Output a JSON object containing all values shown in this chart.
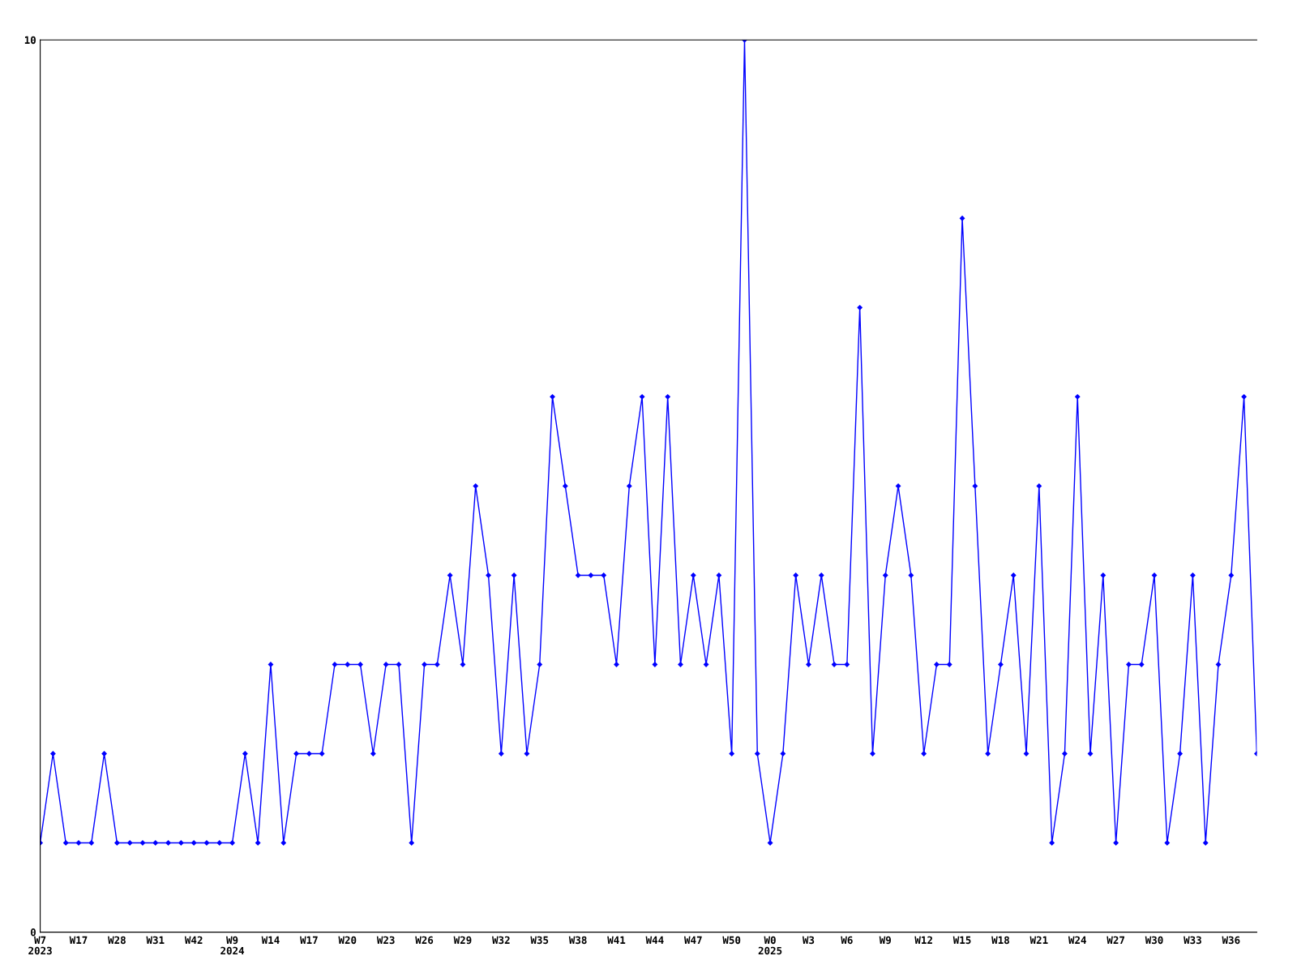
{
  "chart_data": {
    "type": "line",
    "categories": [
      "W7\n2023",
      null,
      null,
      "W17",
      null,
      null,
      "W28",
      null,
      null,
      "W31",
      null,
      null,
      "W42",
      null,
      null,
      "W9\n2024",
      null,
      null,
      "W14",
      null,
      null,
      "W17",
      null,
      null,
      "W20",
      null,
      null,
      "W23",
      null,
      null,
      "W26",
      null,
      null,
      "W29",
      null,
      null,
      "W32",
      null,
      null,
      "W35",
      null,
      null,
      "W38",
      null,
      null,
      "W41",
      null,
      null,
      "W44",
      null,
      null,
      "W47",
      null,
      null,
      "W50",
      null,
      null,
      "W0\n2025",
      null,
      null,
      "W3",
      null,
      null,
      "W6",
      null,
      null,
      "W9",
      null,
      null,
      "W12",
      null,
      null,
      "W15",
      null,
      null,
      "W18",
      null,
      null,
      "W21",
      null,
      null,
      "W24",
      null,
      null,
      "W27",
      null,
      null,
      "W30",
      null,
      null,
      "W33",
      null,
      null,
      "W36",
      null,
      null
    ],
    "series": [
      {
        "color": "#0000ff",
        "values": [
          1,
          2,
          1,
          1,
          1,
          2,
          1,
          1,
          1,
          1,
          1,
          1,
          1,
          1,
          1,
          1,
          2,
          1,
          3,
          1,
          2,
          2,
          2,
          3,
          3,
          3,
          2,
          3,
          3,
          1,
          3,
          3,
          4,
          3,
          5,
          4,
          2,
          4,
          2,
          3,
          6,
          5,
          4,
          4,
          4,
          3,
          5,
          6,
          3,
          6,
          3,
          4,
          3,
          4,
          2,
          10,
          2,
          1,
          2,
          4,
          3,
          4,
          3,
          3,
          7,
          2,
          4,
          5,
          4,
          2,
          3,
          3,
          8,
          5,
          2,
          3,
          4,
          2,
          5,
          1,
          2,
          6,
          2,
          4,
          1,
          3,
          3,
          4,
          1,
          2,
          4,
          1,
          3,
          4,
          6,
          2
        ]
      }
    ],
    "ylim": [
      0,
      10
    ],
    "yticks": [
      0,
      10
    ],
    "grid": false,
    "legend": false,
    "marker": "diamond",
    "line_style": "solid"
  }
}
